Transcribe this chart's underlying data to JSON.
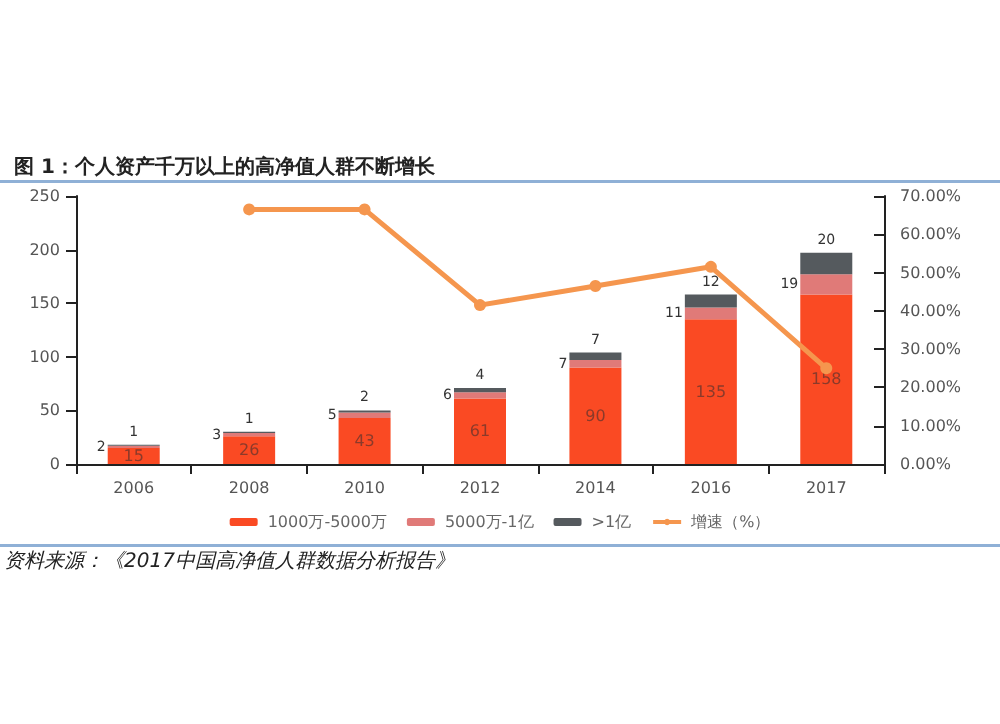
{
  "chart_data": {
    "type": "bar",
    "title": "图 1：个人资产千万以上的高净值人群不断增长",
    "annotations": [
      "资料来源：《2017中国高净值人群数据分析报告》"
    ],
    "categories": [
      "2006",
      "2008",
      "2010",
      "2012",
      "2014",
      "2016",
      "2017"
    ],
    "stacked": true,
    "legend": "bottom",
    "grid": false,
    "series": [
      {
        "name": "1000万-5000万",
        "color": "#fa4a23",
        "values": [
          15,
          26,
          43,
          61,
          90,
          135,
          158
        ],
        "value_labels": [
          "15",
          "26",
          "43",
          "61",
          "90",
          "135",
          "158"
        ]
      },
      {
        "name": "5000万-1亿",
        "color": "#e07a78",
        "values": [
          2,
          3,
          5,
          6,
          7,
          11,
          19
        ],
        "value_labels": [
          "2",
          "3",
          "5",
          "6",
          "7",
          "11",
          "19"
        ]
      },
      {
        "name": ">1亿",
        "color": "#555a5e",
        "values": [
          1,
          1,
          2,
          4,
          7,
          12,
          20
        ],
        "value_labels": [
          "1",
          "1",
          "2",
          "4",
          "7",
          "12",
          "20"
        ]
      },
      {
        "name": "增速（%）",
        "type": "line",
        "axis": "y2",
        "color": "#f5964e",
        "marker": "circle",
        "values": [
          null,
          66.5,
          66.5,
          41.5,
          46.5,
          51.5,
          25
        ]
      }
    ],
    "ylim": [
      0,
      250
    ],
    "yticks": [
      0,
      50,
      100,
      150,
      200,
      250
    ],
    "y2lim": [
      0,
      70
    ],
    "y2ticks": [
      {
        "value": 0,
        "label": "0.00%"
      },
      {
        "value": 10,
        "label": "10.00%"
      },
      {
        "value": 20,
        "label": "20.00%"
      },
      {
        "value": 30,
        "label": "30.00%"
      },
      {
        "value": 40,
        "label": "40.00%"
      },
      {
        "value": 50,
        "label": "50.00%"
      },
      {
        "value": 60,
        "label": "60.00%"
      },
      {
        "value": 70,
        "label": "70.00%"
      }
    ]
  }
}
